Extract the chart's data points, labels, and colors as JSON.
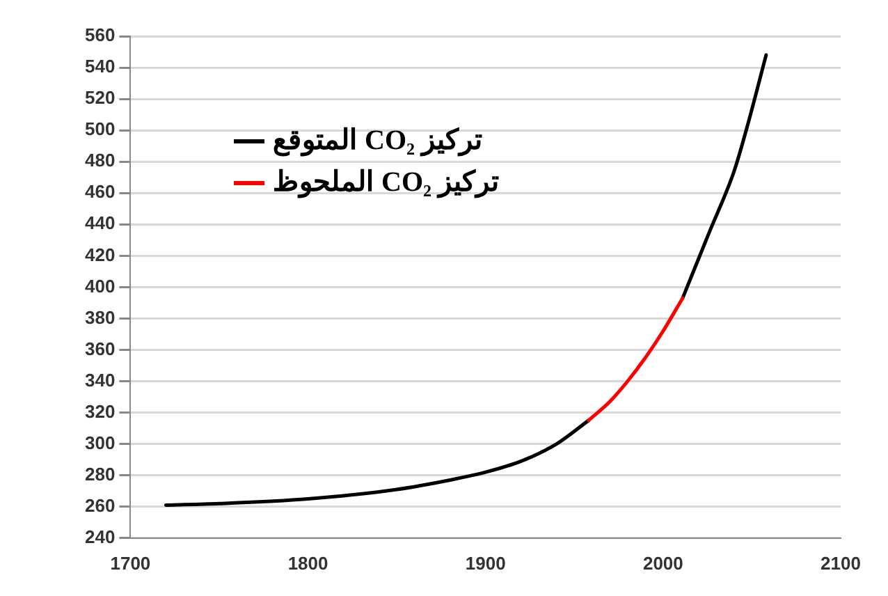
{
  "chart_data": {
    "type": "line",
    "x": [
      1720,
      1750,
      1800,
      1850,
      1880,
      1900,
      1920,
      1940,
      1958,
      1970,
      1980,
      1990,
      2000,
      2011,
      2026,
      2040,
      2048,
      2058
    ],
    "series": [
      {
        "name": "تركيز CO₂ المتوقع",
        "color": "#000000",
        "values": [
          261,
          262,
          265,
          271,
          277,
          282,
          289,
          300,
          315,
          null,
          null,
          null,
          null,
          393,
          435,
          474,
          505,
          548
        ]
      },
      {
        "name": "تركيز CO₂ الملحوظ",
        "color": "#ff0000",
        "x": [
          1958,
          1970,
          1980,
          1990,
          2000,
          2011
        ],
        "values": [
          315,
          327,
          340,
          355,
          372,
          393
        ]
      }
    ],
    "xlim": [
      1700,
      2100
    ],
    "xticks": [
      1700,
      1800,
      1900,
      2000,
      2100
    ],
    "ylim": [
      240,
      560
    ],
    "yticks": [
      240,
      260,
      280,
      300,
      320,
      340,
      360,
      380,
      400,
      420,
      440,
      460,
      480,
      500,
      520,
      540,
      560
    ],
    "grid": "y",
    "legend": "top left",
    "marker": "none",
    "line_style": "solid"
  }
}
